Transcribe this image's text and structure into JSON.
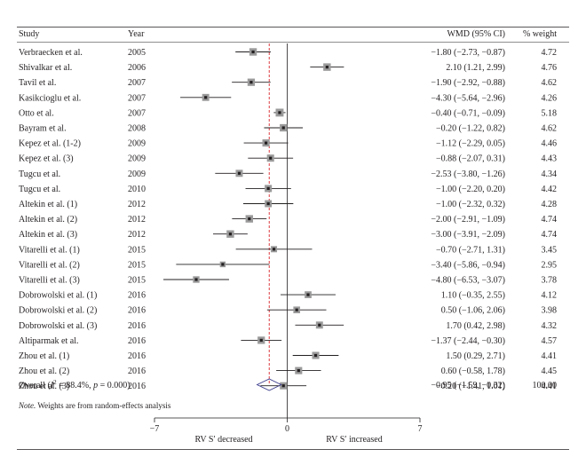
{
  "chart_data": {
    "type": "forest",
    "columns": {
      "study": "Study",
      "year": "Year",
      "effect": "WMD (95% CI)",
      "weight": "% weight"
    },
    "studies": [
      {
        "study": "Verbraecken et al.",
        "year": "2005",
        "wmd": -1.8,
        "lo": -2.73,
        "hi": -0.87,
        "ci_text": "−1.80 (−2.73, −0.87)",
        "weight": "4.72"
      },
      {
        "study": "Shivalkar et al.",
        "year": "2006",
        "wmd": 2.1,
        "lo": 1.21,
        "hi": 2.99,
        "ci_text": "2.10 (1.21, 2.99)",
        "weight": "4.76"
      },
      {
        "study": "Tavil et al.",
        "year": "2007",
        "wmd": -1.9,
        "lo": -2.92,
        "hi": -0.88,
        "ci_text": "−1.90 (−2.92, −0.88)",
        "weight": "4.62"
      },
      {
        "study": "Kasikcioglu et al.",
        "year": "2007",
        "wmd": -4.3,
        "lo": -5.64,
        "hi": -2.96,
        "ci_text": "−4.30 (−5.64, −2.96)",
        "weight": "4.26"
      },
      {
        "study": "Otto et al.",
        "year": "2007",
        "wmd": -0.4,
        "lo": -0.71,
        "hi": -0.09,
        "ci_text": "−0.40 (−0.71, −0.09)",
        "weight": "5.18"
      },
      {
        "study": "Bayram et al.",
        "year": "2008",
        "wmd": -0.2,
        "lo": -1.22,
        "hi": 0.82,
        "ci_text": "−0.20 (−1.22, 0.82)",
        "weight": "4.62"
      },
      {
        "study": "Kepez et al. (1-2)",
        "year": "2009",
        "wmd": -1.12,
        "lo": -2.29,
        "hi": 0.05,
        "ci_text": "−1.12 (−2.29, 0.05)",
        "weight": "4.46"
      },
      {
        "study": "Kepez et al. (3)",
        "year": "2009",
        "wmd": -0.88,
        "lo": -2.07,
        "hi": 0.31,
        "ci_text": "−0.88 (−2.07, 0.31)",
        "weight": "4.43"
      },
      {
        "study": "Tugcu et al.",
        "year": "2009",
        "wmd": -2.53,
        "lo": -3.8,
        "hi": -1.26,
        "ci_text": "−2.53 (−3.80, −1.26)",
        "weight": "4.34"
      },
      {
        "study": "Tugcu et al.",
        "year": "2010",
        "wmd": -1.0,
        "lo": -2.2,
        "hi": 0.2,
        "ci_text": "−1.00 (−2.20, 0.20)",
        "weight": "4.42"
      },
      {
        "study": "Altekin et al. (1)",
        "year": "2012",
        "wmd": -1.0,
        "lo": -2.32,
        "hi": 0.32,
        "ci_text": "−1.00 (−2.32, 0.32)",
        "weight": "4.28"
      },
      {
        "study": "Altekin et al. (2)",
        "year": "2012",
        "wmd": -2.0,
        "lo": -2.91,
        "hi": -1.09,
        "ci_text": "−2.00 (−2.91, −1.09)",
        "weight": "4.74"
      },
      {
        "study": "Altekin et al. (3)",
        "year": "2012",
        "wmd": -3.0,
        "lo": -3.91,
        "hi": -2.09,
        "ci_text": "−3.00 (−3.91, −2.09)",
        "weight": "4.74"
      },
      {
        "study": "Vitarelli et al. (1)",
        "year": "2015",
        "wmd": -0.7,
        "lo": -2.71,
        "hi": 1.31,
        "ci_text": "−0.70 (−2.71, 1.31)",
        "weight": "3.45"
      },
      {
        "study": "Vitarelli et al. (2)",
        "year": "2015",
        "wmd": -3.4,
        "lo": -5.86,
        "hi": -0.94,
        "ci_text": "−3.40 (−5.86, −0.94)",
        "weight": "2.95"
      },
      {
        "study": "Vitarelli et al. (3)",
        "year": "2015",
        "wmd": -4.8,
        "lo": -6.53,
        "hi": -3.07,
        "ci_text": "−4.80 (−6.53, −3.07)",
        "weight": "3.78"
      },
      {
        "study": "Dobrowolski et al. (1)",
        "year": "2016",
        "wmd": 1.1,
        "lo": -0.35,
        "hi": 2.55,
        "ci_text": "1.10 (−0.35, 2.55)",
        "weight": "4.12"
      },
      {
        "study": "Dobrowolski et al. (2)",
        "year": "2016",
        "wmd": 0.5,
        "lo": -1.06,
        "hi": 2.06,
        "ci_text": "0.50 (−1.06, 2.06)",
        "weight": "3.98"
      },
      {
        "study": "Dobrowolski et al. (3)",
        "year": "2016",
        "wmd": 1.7,
        "lo": 0.42,
        "hi": 2.98,
        "ci_text": "1.70 (0.42, 2.98)",
        "weight": "4.32"
      },
      {
        "study": "Altiparmak et al.",
        "year": "2016",
        "wmd": -1.37,
        "lo": -2.44,
        "hi": -0.3,
        "ci_text": "−1.37 (−2.44, −0.30)",
        "weight": "4.57"
      },
      {
        "study": "Zhou et al. (1)",
        "year": "2016",
        "wmd": 1.5,
        "lo": 0.29,
        "hi": 2.71,
        "ci_text": "1.50 (0.29, 2.71)",
        "weight": "4.41"
      },
      {
        "study": "Zhou et al. (2)",
        "year": "2016",
        "wmd": 0.6,
        "lo": -0.58,
        "hi": 1.78,
        "ci_text": "0.60 (−0.58, 1.78)",
        "weight": "4.45"
      },
      {
        "study": "Zhou et al. (3)",
        "year": "2016",
        "wmd": -0.2,
        "lo": -1.41,
        "hi": 1.01,
        "ci_text": "−0.20 (−1.41, 1.01)",
        "weight": "4.41"
      }
    ],
    "overall": {
      "label_prefix": "Overall (",
      "label_i": "I",
      "label_sup": "2",
      "label_mid": " = 88.4%, ",
      "label_p": "p",
      "label_end": " = 0.000)",
      "wmd": -0.95,
      "lo": -1.59,
      "hi": -0.32,
      "ci_text": "−0.95 (−1.59, −0.32)",
      "weight": "100.00"
    },
    "note": {
      "label": "Note.",
      "text": " Weights are from random-effects analysis"
    },
    "x_axis": {
      "range": [
        -7,
        7
      ],
      "ticks": [
        -7,
        0,
        7
      ],
      "tick_labels": [
        "−7",
        "0",
        "7"
      ],
      "left_label": "RV S′ decreased",
      "right_label": "RV S′ increased"
    },
    "reference_lines": {
      "null_value": 0,
      "overall_value": -0.95,
      "overall_color": "#d9242a"
    },
    "colors": {
      "ink": "#231f20",
      "box_fill": "#9a9a9a",
      "diamond": "#3a3a8c"
    }
  }
}
